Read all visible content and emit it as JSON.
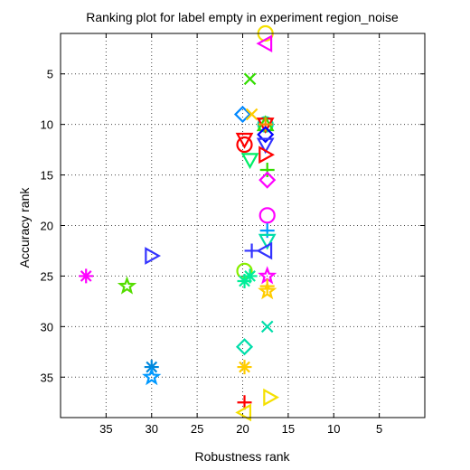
{
  "chart_data": {
    "type": "scatter",
    "title": "Ranking plot for label empty in experiment region_noise",
    "xlabel": "Robustness rank",
    "ylabel": "Accuracy rank",
    "xlim": [
      40,
      0
    ],
    "ylim": [
      39,
      1
    ],
    "x_reversed": true,
    "y_reversed": true,
    "xticks": [
      35,
      30,
      25,
      20,
      15,
      10,
      5
    ],
    "yticks": [
      5,
      10,
      15,
      20,
      25,
      30,
      35
    ],
    "grid": true,
    "points": [
      {
        "x": 17.5,
        "y": 1.0,
        "marker": "circle",
        "color": "#f5e000"
      },
      {
        "x": 17.5,
        "y": 2.0,
        "marker": "triangle-left",
        "color": "#ff00ff"
      },
      {
        "x": 19.2,
        "y": 5.5,
        "marker": "x",
        "color": "#33dd00"
      },
      {
        "x": 20.0,
        "y": 9.0,
        "marker": "diamond",
        "color": "#0088ff"
      },
      {
        "x": 19.0,
        "y": 9.0,
        "marker": "x",
        "color": "#ffcc00"
      },
      {
        "x": 17.5,
        "y": 10.0,
        "marker": "circle",
        "color": "#00ddaa"
      },
      {
        "x": 17.5,
        "y": 10.0,
        "marker": "triangle-down",
        "color": "#ff0000"
      },
      {
        "x": 17.5,
        "y": 10.0,
        "marker": "triangle-up",
        "color": "#33dd00"
      },
      {
        "x": 17.5,
        "y": 10.0,
        "marker": "plus",
        "color": "#ff8800"
      },
      {
        "x": 17.5,
        "y": 11.0,
        "marker": "diamond",
        "color": "#0000ff"
      },
      {
        "x": 19.8,
        "y": 11.5,
        "marker": "triangle-down",
        "color": "#ff0000"
      },
      {
        "x": 19.8,
        "y": 12.0,
        "marker": "circle",
        "color": "#ff0000"
      },
      {
        "x": 17.5,
        "y": 12.0,
        "marker": "triangle-down",
        "color": "#3333ff"
      },
      {
        "x": 19.2,
        "y": 13.5,
        "marker": "triangle-down",
        "color": "#00ee66"
      },
      {
        "x": 17.5,
        "y": 13.0,
        "marker": "triangle-right",
        "color": "#ff0000"
      },
      {
        "x": 17.3,
        "y": 14.5,
        "marker": "plus",
        "color": "#33dd00"
      },
      {
        "x": 17.3,
        "y": 15.5,
        "marker": "diamond",
        "color": "#ff00ff"
      },
      {
        "x": 17.3,
        "y": 19.0,
        "marker": "circle",
        "color": "#ff00ff"
      },
      {
        "x": 17.3,
        "y": 20.5,
        "marker": "plus",
        "color": "#0099ff"
      },
      {
        "x": 17.3,
        "y": 21.5,
        "marker": "triangle-down",
        "color": "#00ddaa"
      },
      {
        "x": 19.0,
        "y": 22.5,
        "marker": "plus",
        "color": "#3333ff"
      },
      {
        "x": 17.5,
        "y": 22.5,
        "marker": "triangle-left",
        "color": "#3333ff"
      },
      {
        "x": 30.0,
        "y": 23.0,
        "marker": "triangle-right",
        "color": "#3333ff"
      },
      {
        "x": 37.2,
        "y": 25.0,
        "marker": "asterisk",
        "color": "#ff00ff"
      },
      {
        "x": 32.7,
        "y": 26.0,
        "marker": "pentagram",
        "color": "#55dd00"
      },
      {
        "x": 19.8,
        "y": 24.5,
        "marker": "circle",
        "color": "#88ee00"
      },
      {
        "x": 19.2,
        "y": 25.0,
        "marker": "asterisk",
        "color": "#00ee99"
      },
      {
        "x": 19.8,
        "y": 25.5,
        "marker": "asterisk",
        "color": "#00ee99"
      },
      {
        "x": 17.3,
        "y": 25.0,
        "marker": "pentagram",
        "color": "#ff00ff"
      },
      {
        "x": 17.3,
        "y": 26.0,
        "marker": "plus",
        "color": "#ffcc00"
      },
      {
        "x": 17.3,
        "y": 26.5,
        "marker": "pentagram",
        "color": "#ffcc00"
      },
      {
        "x": 17.3,
        "y": 30.0,
        "marker": "x",
        "color": "#00ddaa"
      },
      {
        "x": 19.8,
        "y": 32.0,
        "marker": "diamond",
        "color": "#00ddaa"
      },
      {
        "x": 30.0,
        "y": 34.0,
        "marker": "asterisk",
        "color": "#0088dd"
      },
      {
        "x": 30.0,
        "y": 35.0,
        "marker": "pentagram",
        "color": "#0099ff"
      },
      {
        "x": 19.8,
        "y": 34.0,
        "marker": "asterisk",
        "color": "#ffcc00"
      },
      {
        "x": 17.0,
        "y": 37.0,
        "marker": "triangle-right",
        "color": "#f5e000"
      },
      {
        "x": 19.8,
        "y": 37.5,
        "marker": "plus",
        "color": "#ff0000"
      },
      {
        "x": 19.8,
        "y": 38.5,
        "marker": "triangle-left",
        "color": "#f5e000"
      }
    ]
  }
}
